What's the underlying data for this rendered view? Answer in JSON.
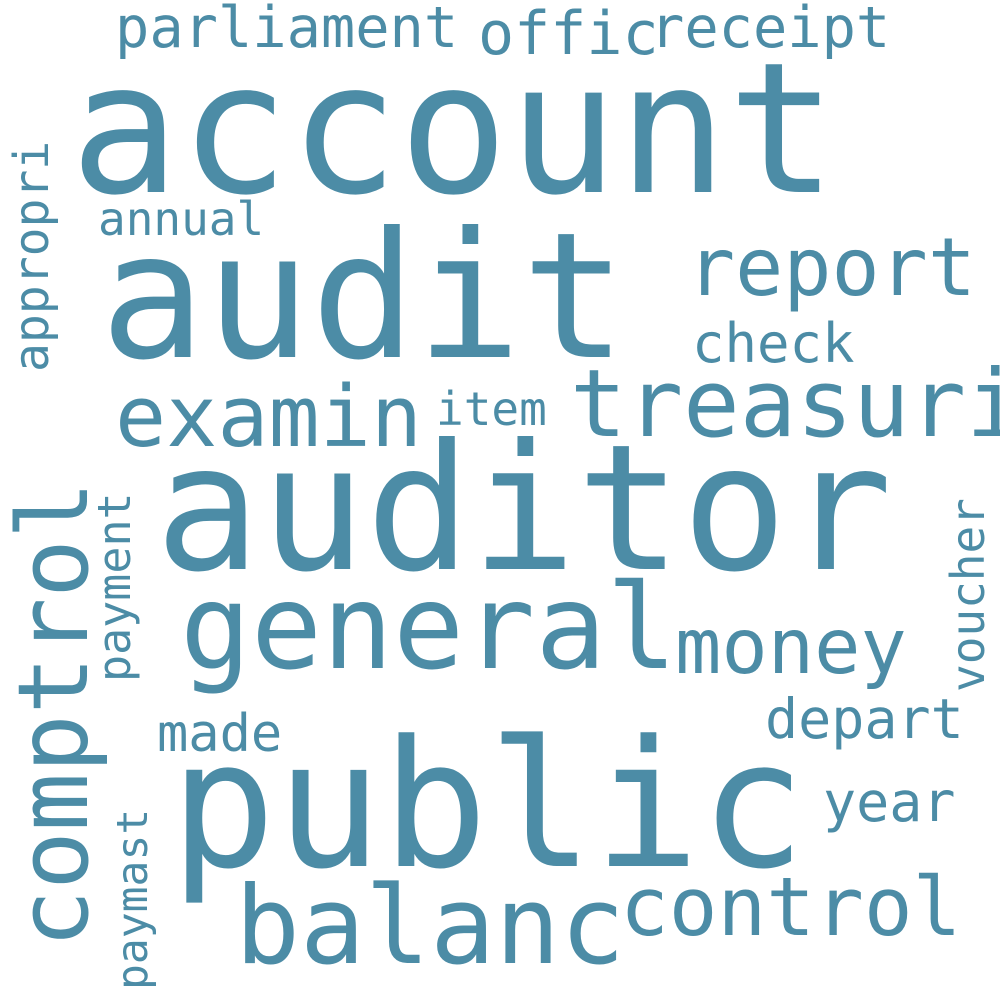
{
  "color": "#4c8ca6",
  "words": {
    "account": "account",
    "audit": "audit",
    "auditor": "auditor",
    "public": "public",
    "general": "general",
    "comptrol": "comptrol",
    "treasuri": "treasuri",
    "examin": "examin",
    "report": "report",
    "balanc": "balanc",
    "control": "control",
    "money": "money",
    "parliament": "parliament",
    "offic": "offic",
    "receipt": "receipt",
    "annual": "annual",
    "appropri": "appropri",
    "check": "check",
    "item": "item",
    "payment": "payment",
    "voucher": "voucher",
    "made": "made",
    "depart": "depart",
    "year": "year",
    "paymast": "paymast"
  }
}
